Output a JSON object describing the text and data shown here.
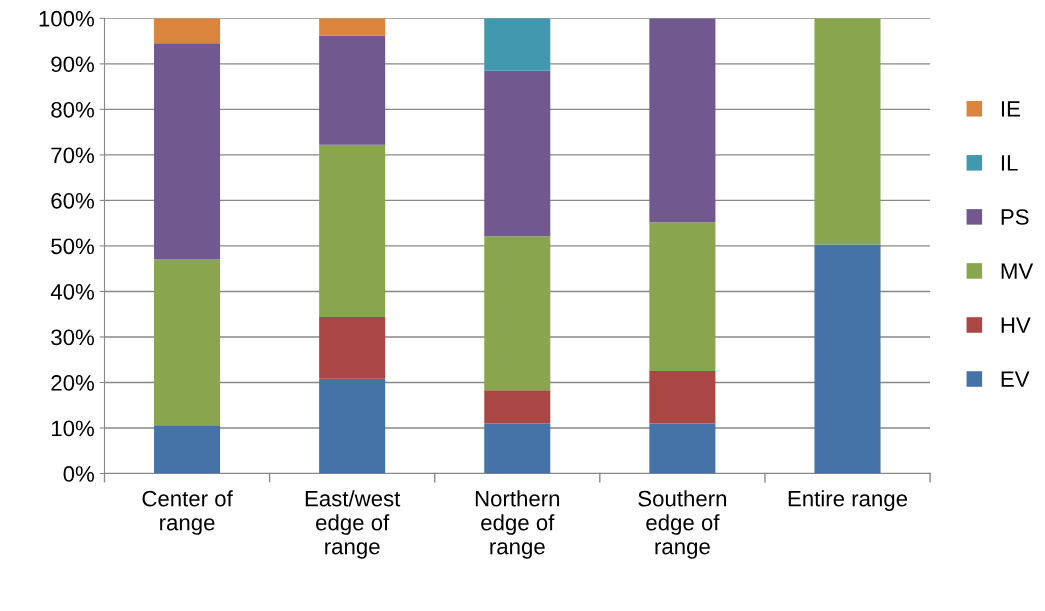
{
  "chart_data": {
    "type": "bar",
    "stacked": true,
    "categories": [
      "Center of\nrange",
      "East/west\nedge of\nrange",
      "Northern\nedge of\nrange",
      "Southern\nedge of\nrange",
      "Entire range"
    ],
    "series": [
      {
        "name": "EV",
        "color": "#4572a7",
        "values": [
          10.6,
          20.8,
          11.0,
          11.0,
          50.3
        ]
      },
      {
        "name": "HV",
        "color": "#aa4643",
        "values": [
          0,
          13.6,
          7.3,
          11.5,
          0
        ]
      },
      {
        "name": "MV",
        "color": "#89a54e",
        "values": [
          36.4,
          37.8,
          33.8,
          32.7,
          49.7
        ]
      },
      {
        "name": "PS",
        "color": "#71588f",
        "values": [
          47.5,
          24.0,
          36.4,
          44.8,
          0
        ]
      },
      {
        "name": "IL",
        "color": "#4198af",
        "values": [
          0,
          0,
          11.5,
          0,
          0
        ]
      },
      {
        "name": "IE",
        "color": "#db843d",
        "values": [
          5.5,
          3.8,
          0,
          0,
          0
        ]
      }
    ],
    "ylim": [
      0,
      100
    ],
    "yticks": [
      {
        "value": 0,
        "label": "0%"
      },
      {
        "value": 10,
        "label": "10%"
      },
      {
        "value": 20,
        "label": "20%"
      },
      {
        "value": 30,
        "label": "30%"
      },
      {
        "value": 40,
        "label": "40%"
      },
      {
        "value": 50,
        "label": "50%"
      },
      {
        "value": 60,
        "label": "60%"
      },
      {
        "value": 70,
        "label": "70%"
      },
      {
        "value": 80,
        "label": "80%"
      },
      {
        "value": 90,
        "label": "90%"
      },
      {
        "value": 100,
        "label": "100%"
      }
    ],
    "grid": "y",
    "legend": "right"
  }
}
